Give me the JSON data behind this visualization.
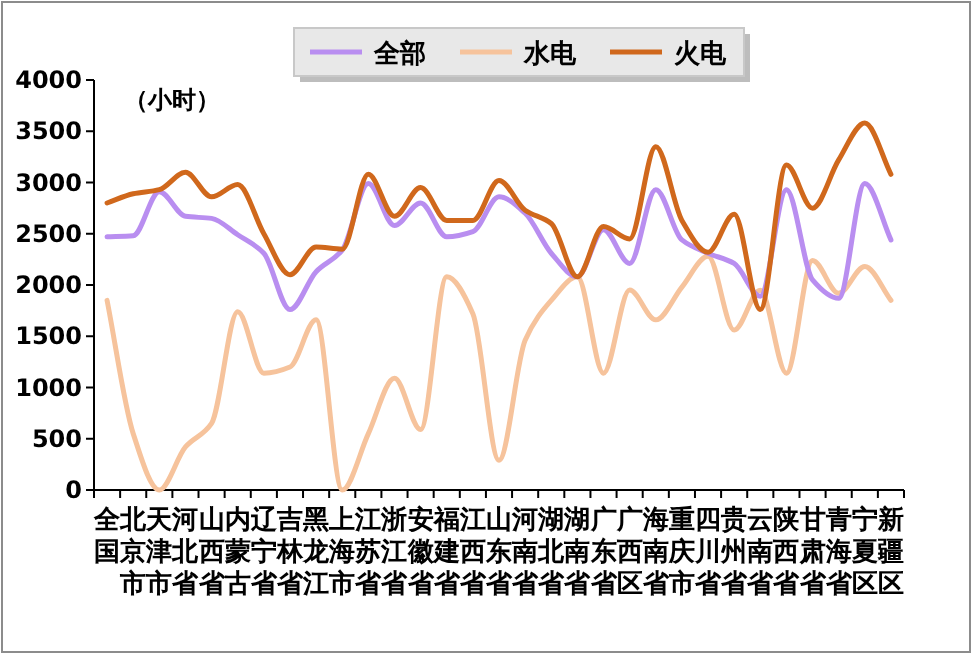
{
  "chart_data": {
    "type": "line",
    "categories": [
      "全国",
      "北京市",
      "天津市",
      "河北省",
      "山西省",
      "内蒙古",
      "辽宁省",
      "吉林省",
      "黑龙江",
      "上海市",
      "江苏省",
      "浙江省",
      "安徽省",
      "福建省",
      "江西省",
      "山东省",
      "河南省",
      "湖北省",
      "湖南省",
      "广东省",
      "广西区",
      "海南省",
      "重庆市",
      "四川省",
      "贵州省",
      "云南省",
      "陕西省",
      "甘肃省",
      "青海省",
      "宁夏区",
      "新疆区"
    ],
    "series": [
      {
        "name": "全部",
        "color": "#b98ef0",
        "values": [
          2470,
          2480,
          2910,
          2670,
          2650,
          2490,
          2310,
          1760,
          2130,
          2340,
          2990,
          2580,
          2800,
          2470,
          2520,
          2860,
          2700,
          2310,
          2080,
          2540,
          2210,
          2930,
          2440,
          2310,
          2210,
          1890,
          2930,
          2050,
          1870,
          2990,
          2440
        ]
      },
      {
        "name": "水电",
        "color": "#f6c39c",
        "values": [
          1850,
          550,
          0,
          420,
          650,
          1740,
          1140,
          1200,
          1660,
          0,
          550,
          1090,
          590,
          2080,
          1720,
          290,
          1460,
          1850,
          2080,
          1140,
          1950,
          1660,
          1980,
          2280,
          1560,
          1950,
          1140,
          2240,
          1920,
          2180,
          1850
        ]
      },
      {
        "name": "火电",
        "color": "#d0681c",
        "values": [
          2800,
          2890,
          2930,
          3100,
          2860,
          2980,
          2500,
          2100,
          2370,
          2350,
          3080,
          2670,
          2950,
          2630,
          2630,
          3020,
          2730,
          2600,
          2080,
          2570,
          2450,
          3350,
          2630,
          2320,
          2690,
          1760,
          3170,
          2750,
          3220,
          3580,
          3080
        ]
      }
    ],
    "ylim": [
      0,
      4000
    ],
    "yticks": [
      0,
      500,
      1000,
      1500,
      2000,
      2500,
      3000,
      3500,
      4000
    ],
    "annotations": [
      "（小时）"
    ],
    "legend": "top",
    "grid": false
  }
}
